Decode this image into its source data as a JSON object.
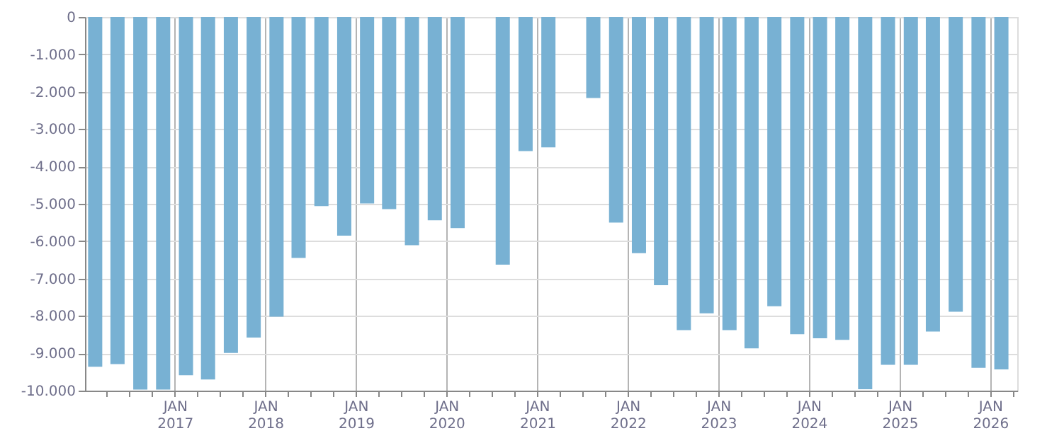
{
  "chart_data": {
    "type": "bar",
    "x": [
      "2016-02-15",
      "2016-05-15",
      "2016-08-15",
      "2016-11-15",
      "2017-02-15",
      "2017-05-15",
      "2017-08-15",
      "2017-11-15",
      "2018-02-15",
      "2018-05-15",
      "2018-08-15",
      "2018-11-15",
      "2019-02-15",
      "2019-05-15",
      "2019-08-15",
      "2019-11-15",
      "2020-02-15",
      "2020-05-15",
      "2020-08-15",
      "2020-11-15",
      "2021-02-15",
      "2021-05-15",
      "2021-08-15",
      "2021-11-15",
      "2022-02-15",
      "2022-05-15",
      "2022-08-15",
      "2022-11-15",
      "2023-02-15",
      "2023-05-15",
      "2023-08-15",
      "2023-11-15",
      "2024-02-15",
      "2024-05-15",
      "2024-08-15",
      "2024-11-15",
      "2025-02-15",
      "2025-05-15",
      "2025-08-15",
      "2025-11-15",
      "2026-02-15"
    ],
    "values": [
      -9360,
      -9290,
      -9970,
      -9970,
      -9590,
      -9700,
      -8990,
      -8580,
      -8020,
      -6450,
      -5060,
      -5850,
      -4990,
      -5140,
      -6110,
      -5440,
      -5650,
      null,
      -6630,
      -3590,
      -3490,
      null,
      -2170,
      -5500,
      -6320,
      -7180,
      -8380,
      -7930,
      -8380,
      -8870,
      -7740,
      -8490,
      -8600,
      -8640,
      -9960,
      -9310,
      -9310,
      -8420,
      -7890,
      -9390,
      -9430
    ],
    "color": "#78b1d3",
    "xlim": [
      "2016-01-05",
      "2026-04-20"
    ],
    "xticks": [
      {
        "value": "2016-04-01",
        "label": null
      },
      {
        "value": "2016-07-01",
        "label": null
      },
      {
        "value": "2016-10-01",
        "label": null
      },
      {
        "value": "2017-01-01",
        "label": "JAN 2017"
      },
      {
        "value": "2017-04-01",
        "label": null
      },
      {
        "value": "2017-07-01",
        "label": null
      },
      {
        "value": "2017-10-01",
        "label": null
      },
      {
        "value": "2018-01-01",
        "label": "JAN 2018"
      },
      {
        "value": "2018-04-01",
        "label": null
      },
      {
        "value": "2018-07-01",
        "label": null
      },
      {
        "value": "2018-10-01",
        "label": null
      },
      {
        "value": "2019-01-01",
        "label": "JAN 2019"
      },
      {
        "value": "2019-04-01",
        "label": null
      },
      {
        "value": "2019-07-01",
        "label": null
      },
      {
        "value": "2019-10-01",
        "label": null
      },
      {
        "value": "2020-01-01",
        "label": "JAN 2020"
      },
      {
        "value": "2020-04-01",
        "label": null
      },
      {
        "value": "2020-07-01",
        "label": null
      },
      {
        "value": "2020-10-01",
        "label": null
      },
      {
        "value": "2021-01-01",
        "label": "JAN 2021"
      },
      {
        "value": "2021-04-01",
        "label": null
      },
      {
        "value": "2021-07-01",
        "label": null
      },
      {
        "value": "2021-10-01",
        "label": null
      },
      {
        "value": "2022-01-01",
        "label": "JAN 2022"
      },
      {
        "value": "2022-04-01",
        "label": null
      },
      {
        "value": "2022-07-01",
        "label": null
      },
      {
        "value": "2022-10-01",
        "label": null
      },
      {
        "value": "2023-01-01",
        "label": "JAN 2023"
      },
      {
        "value": "2023-04-01",
        "label": null
      },
      {
        "value": "2023-07-01",
        "label": null
      },
      {
        "value": "2023-10-01",
        "label": null
      },
      {
        "value": "2024-01-01",
        "label": "JAN 2024"
      },
      {
        "value": "2024-04-01",
        "label": null
      },
      {
        "value": "2024-07-01",
        "label": null
      },
      {
        "value": "2024-10-01",
        "label": null
      },
      {
        "value": "2025-01-01",
        "label": "JAN 2025"
      },
      {
        "value": "2025-04-01",
        "label": null
      },
      {
        "value": "2025-07-01",
        "label": null
      },
      {
        "value": "2025-10-01",
        "label": null
      },
      {
        "value": "2026-01-01",
        "label": "JAN 2026"
      },
      {
        "value": "2026-04-01",
        "label": null
      }
    ],
    "ylim": [
      -10000,
      0
    ],
    "yticks": [
      {
        "value": 0,
        "label": "0"
      },
      {
        "value": -1000,
        "label": "-1.000"
      },
      {
        "value": -2000,
        "label": "-2.000"
      },
      {
        "value": -3000,
        "label": "-3.000"
      },
      {
        "value": -4000,
        "label": "-4.000"
      },
      {
        "value": -5000,
        "label": "-5.000"
      },
      {
        "value": -6000,
        "label": "-6.000"
      },
      {
        "value": -7000,
        "label": "-7.000"
      },
      {
        "value": -8000,
        "label": "-8.000"
      },
      {
        "value": -9000,
        "label": "-9.000"
      },
      {
        "value": -10000,
        "label": "-10.000"
      }
    ],
    "grid": true
  }
}
